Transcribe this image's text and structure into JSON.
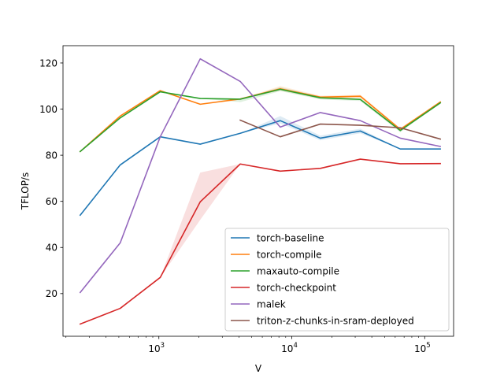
{
  "chart_data": {
    "type": "line",
    "title": "",
    "xlabel": "V",
    "ylabel": "TFLOP/s",
    "xscale": "log",
    "xlim": [
      190,
      165000
    ],
    "ylim": [
      1.5,
      127.5
    ],
    "grid": false,
    "legend_position": "lower-right",
    "x_ticks": [
      {
        "value": 1000,
        "base": "10",
        "exp": "3"
      },
      {
        "value": 10000,
        "base": "10",
        "exp": "4"
      },
      {
        "value": 100000,
        "base": "10",
        "exp": "5"
      }
    ],
    "y_ticks": [
      20,
      40,
      60,
      80,
      100,
      120
    ],
    "x": [
      256,
      512,
      1024,
      2048,
      4096,
      8192,
      16384,
      32768,
      65536,
      131072
    ],
    "series": [
      {
        "name": "torch-baseline",
        "color": "#1f77b4",
        "values": [
          54.0,
          75.8,
          88.0,
          84.8,
          89.5,
          95.0,
          87.4,
          90.5,
          82.7,
          82.7
        ],
        "band_lower": [
          54.0,
          75.8,
          88.0,
          84.8,
          89.5,
          93.8,
          86.5,
          89.5,
          82.7,
          82.7
        ],
        "band_upper": [
          54.0,
          75.8,
          88.0,
          84.8,
          89.5,
          97.0,
          88.5,
          91.5,
          82.7,
          82.7
        ]
      },
      {
        "name": "torch-compile",
        "color": "#ff7f0e",
        "values": [
          81.6,
          97.0,
          108.0,
          102.1,
          104.4,
          108.8,
          105.2,
          105.6,
          91.2,
          103.1
        ],
        "band_lower": [
          81.6,
          97.0,
          108.0,
          102.1,
          104.4,
          108.0,
          104.5,
          104.8,
          90.5,
          103.1
        ],
        "band_upper": [
          81.6,
          97.0,
          108.0,
          102.1,
          104.4,
          110.0,
          105.8,
          106.2,
          91.8,
          103.1
        ]
      },
      {
        "name": "maxauto-compile",
        "color": "#2ca02c",
        "values": [
          81.6,
          96.2,
          107.5,
          104.6,
          104.3,
          108.6,
          104.9,
          104.2,
          90.7,
          102.7
        ],
        "band_lower": [
          81.6,
          96.2,
          107.5,
          104.6,
          103.0,
          107.8,
          104.2,
          103.5,
          90.0,
          102.7
        ],
        "band_upper": [
          81.6,
          96.2,
          107.5,
          104.6,
          104.3,
          109.5,
          105.5,
          104.8,
          91.2,
          102.7
        ]
      },
      {
        "name": "torch-checkpoint",
        "color": "#d62728",
        "values": [
          6.8,
          13.6,
          27.0,
          59.8,
          76.2,
          73.1,
          74.3,
          78.3,
          76.3,
          76.4
        ],
        "band_lower": [
          6.8,
          13.6,
          27.0,
          52.0,
          76.2,
          73.1,
          74.3,
          78.3,
          76.3,
          76.4
        ],
        "band_upper": [
          6.8,
          13.6,
          27.0,
          72.5,
          76.2,
          73.1,
          74.3,
          78.3,
          76.3,
          76.4
        ]
      },
      {
        "name": "malek",
        "color": "#9467bd",
        "values": [
          20.5,
          42.0,
          88.0,
          121.8,
          112.0,
          92.2,
          98.5,
          95.0,
          87.4,
          83.8
        ],
        "band_lower": [
          20.5,
          42.0,
          88.0,
          121.8,
          112.0,
          92.2,
          98.5,
          95.0,
          87.4,
          83.8
        ],
        "band_upper": [
          20.5,
          42.0,
          88.0,
          121.8,
          112.0,
          92.2,
          98.5,
          95.0,
          87.4,
          83.8
        ]
      },
      {
        "name": "triton-z-chunks-in-sram-deployed",
        "color": "#8c564b",
        "values": [
          null,
          null,
          null,
          null,
          95.2,
          88.0,
          93.5,
          93.0,
          91.9,
          87.0
        ],
        "band_lower": [
          null,
          null,
          null,
          null,
          95.2,
          88.0,
          93.5,
          93.0,
          91.9,
          87.0
        ],
        "band_upper": [
          null,
          null,
          null,
          null,
          95.2,
          88.0,
          93.5,
          93.0,
          91.9,
          87.0
        ]
      }
    ]
  }
}
